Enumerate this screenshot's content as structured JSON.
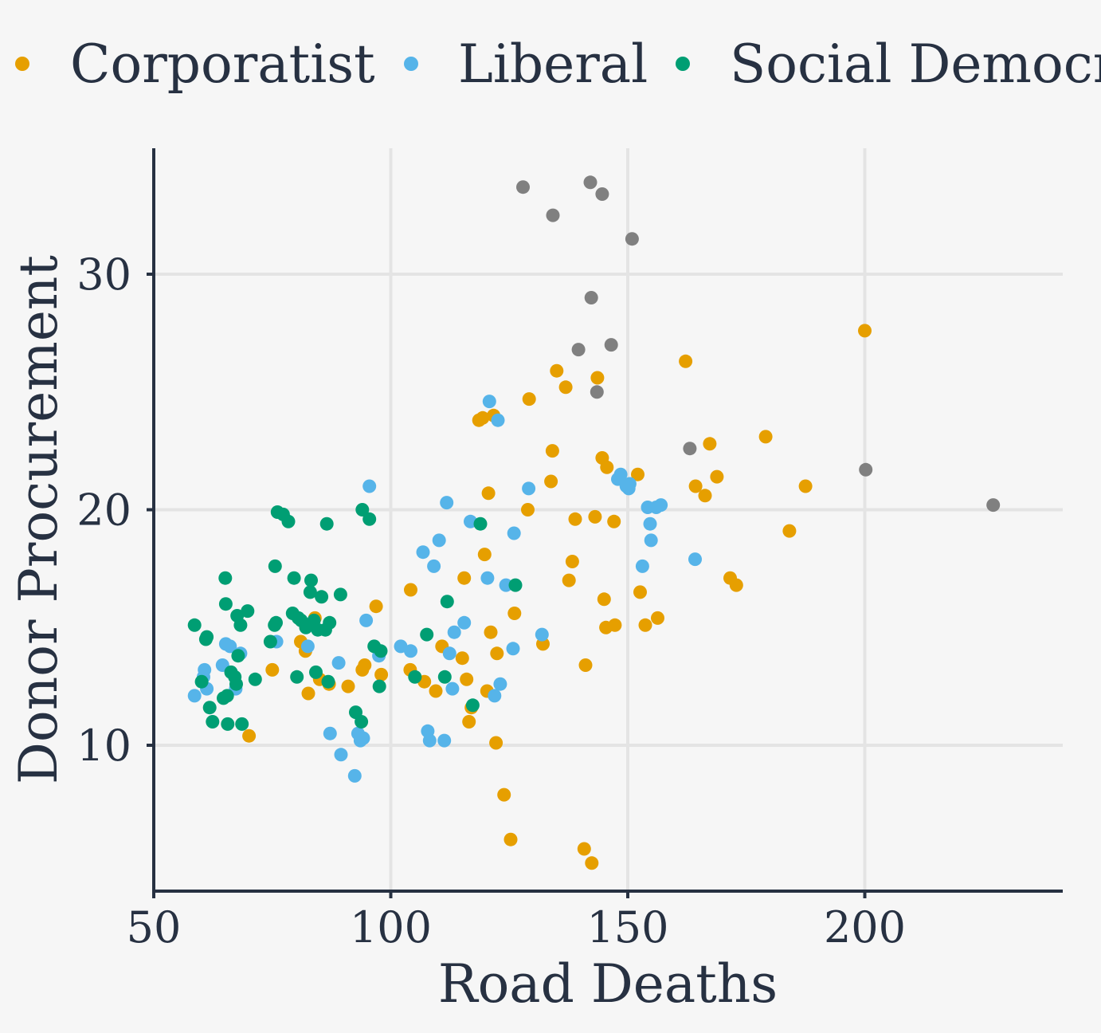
{
  "chart_data": {
    "type": "scatter",
    "xlabel": "Road Deaths",
    "ylabel": "Donor Procurement",
    "xlim": [
      50,
      240
    ],
    "ylim": [
      4,
      35.3
    ],
    "xticks": [
      50,
      100,
      150,
      200
    ],
    "yticks": [
      10,
      20,
      30
    ],
    "grid": true,
    "legend_position": "top",
    "legend": [
      {
        "name": "Corporatist",
        "color": "#e69f00"
      },
      {
        "name": "Liberal",
        "color": "#56b4e9"
      },
      {
        "name": "Social Democratic",
        "color": "#009e73"
      }
    ],
    "series": [
      {
        "name": "Corporatist",
        "color": "#e69f00",
        "points": [
          [
            70.1,
            10.4
          ],
          [
            75.0,
            13.2
          ],
          [
            81.0,
            14.4
          ],
          [
            82.0,
            14.0
          ],
          [
            82.6,
            12.2
          ],
          [
            84.0,
            15.4
          ],
          [
            85.0,
            12.8
          ],
          [
            87.0,
            12.6
          ],
          [
            91.0,
            12.5
          ],
          [
            94.0,
            13.2
          ],
          [
            94.5,
            13.4
          ],
          [
            96.9,
            15.9
          ],
          [
            98.0,
            13.0
          ],
          [
            104.1,
            13.2
          ],
          [
            104.2,
            16.6
          ],
          [
            107.1,
            12.7
          ],
          [
            109.5,
            12.3
          ],
          [
            110.8,
            14.2
          ],
          [
            115.1,
            13.7
          ],
          [
            115.5,
            17.1
          ],
          [
            116.0,
            12.8
          ],
          [
            116.5,
            11.0
          ],
          [
            117.0,
            11.6
          ],
          [
            118.6,
            23.8
          ],
          [
            119.4,
            23.9
          ],
          [
            119.8,
            18.1
          ],
          [
            120.3,
            12.3
          ],
          [
            120.6,
            20.7
          ],
          [
            121.1,
            14.8
          ],
          [
            121.7,
            24.0
          ],
          [
            122.2,
            10.1
          ],
          [
            122.4,
            13.9
          ],
          [
            123.9,
            7.9
          ],
          [
            125.3,
            6.0
          ],
          [
            126.1,
            15.6
          ],
          [
            128.9,
            20.0
          ],
          [
            129.2,
            24.7
          ],
          [
            132.1,
            14.3
          ],
          [
            133.8,
            21.2
          ],
          [
            134.1,
            22.5
          ],
          [
            135.0,
            25.9
          ],
          [
            136.9,
            25.2
          ],
          [
            137.6,
            17.0
          ],
          [
            138.3,
            17.8
          ],
          [
            138.9,
            19.6
          ],
          [
            140.8,
            5.6
          ],
          [
            141.1,
            13.4
          ],
          [
            142.4,
            5.0
          ],
          [
            143.1,
            19.7
          ],
          [
            143.6,
            25.6
          ],
          [
            144.6,
            22.2
          ],
          [
            145.0,
            16.2
          ],
          [
            145.4,
            15.0
          ],
          [
            145.6,
            21.8
          ],
          [
            147.1,
            19.5
          ],
          [
            147.3,
            15.1
          ],
          [
            152.1,
            21.5
          ],
          [
            152.6,
            16.5
          ],
          [
            153.7,
            15.1
          ],
          [
            156.3,
            15.4
          ],
          [
            162.2,
            26.3
          ],
          [
            164.3,
            21.0
          ],
          [
            166.3,
            20.6
          ],
          [
            167.3,
            22.8
          ],
          [
            168.8,
            21.4
          ],
          [
            171.6,
            17.1
          ],
          [
            172.9,
            16.8
          ],
          [
            179.1,
            23.1
          ],
          [
            184.1,
            19.1
          ],
          [
            187.5,
            21.0
          ],
          [
            200.0,
            27.6
          ]
        ]
      },
      {
        "name": "Liberal",
        "color": "#56b4e9",
        "points": [
          [
            58.6,
            12.1
          ],
          [
            60.7,
            13.2
          ],
          [
            61.2,
            12.4
          ],
          [
            60.5,
            12.9
          ],
          [
            64.5,
            13.4
          ],
          [
            65.2,
            14.3
          ],
          [
            66.1,
            14.2
          ],
          [
            67.3,
            12.4
          ],
          [
            68.3,
            13.9
          ],
          [
            75.9,
            14.4
          ],
          [
            82.5,
            14.2
          ],
          [
            89.0,
            13.5
          ],
          [
            89.5,
            9.6
          ],
          [
            87.2,
            10.5
          ],
          [
            92.4,
            8.7
          ],
          [
            93.6,
            10.2
          ],
          [
            93.1,
            10.5
          ],
          [
            94.2,
            10.3
          ],
          [
            94.8,
            15.3
          ],
          [
            95.5,
            21.0
          ],
          [
            97.5,
            13.8
          ],
          [
            102.1,
            14.2
          ],
          [
            104.2,
            14.0
          ],
          [
            106.8,
            18.2
          ],
          [
            107.8,
            10.6
          ],
          [
            108.2,
            10.2
          ],
          [
            109.1,
            17.6
          ],
          [
            110.2,
            18.7
          ],
          [
            111.3,
            10.2
          ],
          [
            111.8,
            20.3
          ],
          [
            112.4,
            13.9
          ],
          [
            113.0,
            12.4
          ],
          [
            113.4,
            14.8
          ],
          [
            115.5,
            15.2
          ],
          [
            116.8,
            19.5
          ],
          [
            120.4,
            17.1
          ],
          [
            120.8,
            24.6
          ],
          [
            121.9,
            12.1
          ],
          [
            122.6,
            23.8
          ],
          [
            123.1,
            12.6
          ],
          [
            124.3,
            16.8
          ],
          [
            125.8,
            14.1
          ],
          [
            126.0,
            19.0
          ],
          [
            129.1,
            20.9
          ],
          [
            131.9,
            14.7
          ],
          [
            147.9,
            21.3
          ],
          [
            148.5,
            21.5
          ],
          [
            149.7,
            21.0
          ],
          [
            150.2,
            20.9
          ],
          [
            150.4,
            21.1
          ],
          [
            153.1,
            17.6
          ],
          [
            154.2,
            20.1
          ],
          [
            154.7,
            19.4
          ],
          [
            154.9,
            18.7
          ],
          [
            156.0,
            20.1
          ],
          [
            157.0,
            20.2
          ],
          [
            164.2,
            17.9
          ]
        ]
      },
      {
        "name": "Social Democratic",
        "color": "#009e73",
        "points": [
          [
            58.6,
            15.1
          ],
          [
            60.1,
            12.7
          ],
          [
            61.0,
            14.5
          ],
          [
            61.2,
            14.6
          ],
          [
            61.8,
            11.6
          ],
          [
            62.4,
            11.0
          ],
          [
            64.7,
            12.0
          ],
          [
            65.1,
            17.1
          ],
          [
            65.2,
            16.0
          ],
          [
            65.5,
            12.1
          ],
          [
            65.6,
            10.9
          ],
          [
            66.3,
            13.1
          ],
          [
            67.1,
            12.9
          ],
          [
            67.4,
            12.6
          ],
          [
            67.6,
            15.5
          ],
          [
            67.8,
            13.8
          ],
          [
            68.3,
            15.1
          ],
          [
            68.6,
            10.9
          ],
          [
            69.8,
            15.7
          ],
          [
            71.4,
            12.8
          ],
          [
            74.6,
            14.4
          ],
          [
            75.5,
            15.1
          ],
          [
            75.6,
            17.6
          ],
          [
            75.8,
            15.2
          ],
          [
            76.1,
            19.9
          ],
          [
            77.3,
            19.8
          ],
          [
            78.4,
            19.5
          ],
          [
            79.3,
            15.6
          ],
          [
            79.6,
            17.1
          ],
          [
            80.2,
            12.9
          ],
          [
            80.5,
            15.4
          ],
          [
            81.1,
            15.3
          ],
          [
            82.1,
            15.0
          ],
          [
            83.0,
            16.5
          ],
          [
            83.2,
            17.0
          ],
          [
            83.8,
            15.3
          ],
          [
            84.2,
            13.1
          ],
          [
            84.6,
            14.9
          ],
          [
            85.4,
            16.3
          ],
          [
            86.2,
            14.9
          ],
          [
            86.5,
            19.4
          ],
          [
            86.8,
            12.7
          ],
          [
            87.1,
            15.2
          ],
          [
            89.4,
            16.4
          ],
          [
            92.6,
            11.4
          ],
          [
            93.8,
            11.0
          ],
          [
            94.0,
            20.0
          ],
          [
            95.5,
            19.6
          ],
          [
            96.5,
            14.2
          ],
          [
            97.6,
            12.5
          ],
          [
            97.9,
            14.0
          ],
          [
            105.1,
            12.9
          ],
          [
            107.6,
            14.7
          ],
          [
            111.4,
            12.9
          ],
          [
            111.9,
            16.1
          ],
          [
            117.3,
            11.7
          ],
          [
            118.9,
            19.4
          ],
          [
            126.3,
            16.8
          ]
        ]
      },
      {
        "name": "",
        "color": "#808080",
        "points": [
          [
            127.9,
            33.7
          ],
          [
            134.2,
            32.5
          ],
          [
            139.6,
            26.8
          ],
          [
            142.1,
            33.9
          ],
          [
            142.3,
            29.0
          ],
          [
            143.5,
            25.0
          ],
          [
            144.6,
            33.4
          ],
          [
            146.5,
            27.0
          ],
          [
            150.9,
            31.5
          ],
          [
            163.1,
            22.6
          ],
          [
            200.2,
            21.7
          ],
          [
            227.1,
            20.2
          ]
        ]
      }
    ]
  }
}
